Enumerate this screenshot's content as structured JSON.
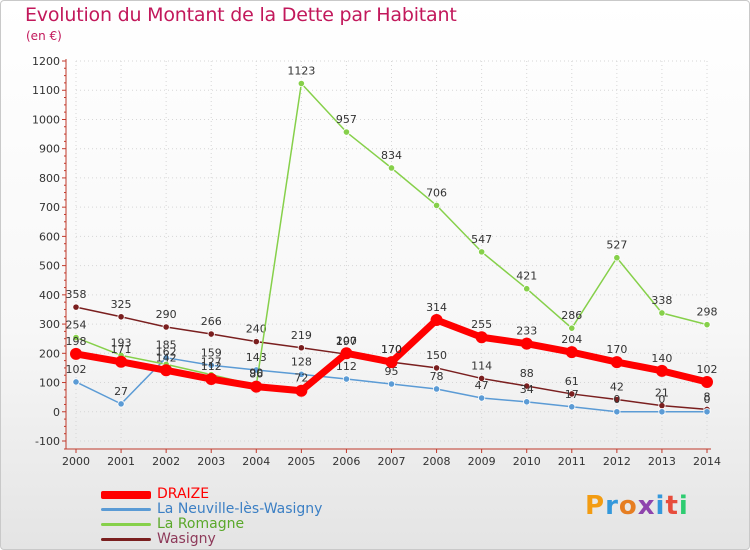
{
  "header": {
    "title": "Evolution du Montant de la Dette par Habitant",
    "subtitle": "(en €)"
  },
  "logo": {
    "text": "Proxiti",
    "letter_colors": [
      "#f39c12",
      "#3498db",
      "#e67e22",
      "#8e44ad",
      "#3498db",
      "#e74c3c",
      "#2ecc71"
    ]
  },
  "chart_data": {
    "type": "line",
    "title": "Evolution du Montant de la Dette par Habitant",
    "ylabel": "(en €)",
    "xlabel": "",
    "ylim": [
      -100,
      1200
    ],
    "yticks": [
      -100,
      0,
      100,
      200,
      300,
      400,
      500,
      600,
      700,
      800,
      900,
      1000,
      1100,
      1200
    ],
    "categories": [
      "2000",
      "2001",
      "2002",
      "2003",
      "2004",
      "2005",
      "2006",
      "2007",
      "2008",
      "2009",
      "2010",
      "2011",
      "2012",
      "2013",
      "2014"
    ],
    "grid": true,
    "legend": "bottom-left",
    "series": [
      {
        "name": "Wasigny",
        "color": "#7a1f1f",
        "emphasis": false,
        "values": [
          358,
          325,
          290,
          266,
          240,
          219,
          197,
          170,
          150,
          114,
          88,
          61,
          42,
          21,
          8
        ]
      },
      {
        "name": "La Neuville-lès-Wasigny",
        "color": "#5b9bd5",
        "emphasis": false,
        "values": [
          102,
          27,
          185,
          159,
          143,
          128,
          112,
          95,
          78,
          47,
          34,
          17,
          0,
          0,
          0
        ]
      },
      {
        "name": "La Romagne",
        "color": "#86d04a",
        "emphasis": false,
        "values": [
          254,
          193,
          162,
          127,
          90,
          1123,
          957,
          834,
          706,
          547,
          421,
          286,
          527,
          338,
          298
        ]
      },
      {
        "name": "DRAIZE",
        "color": "#ff0000",
        "emphasis": true,
        "values": [
          198,
          171,
          142,
          112,
          86,
          72,
          200,
          170,
          314,
          255,
          233,
          204,
          170,
          140,
          102
        ]
      }
    ]
  },
  "legend_items": [
    "DRAIZE",
    "La Neuville-lès-Wasigny",
    "La Romagne",
    "Wasigny"
  ]
}
